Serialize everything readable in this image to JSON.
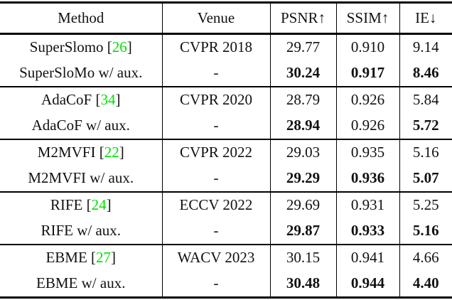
{
  "table": {
    "title": "video frame interpolation benchmark results",
    "colors": {
      "text": "#111111",
      "citation_green": "#00e000",
      "rule": "#000000",
      "background": "#ffffff"
    },
    "headers": [
      "Method",
      "Venue",
      "PSNR↑",
      "SSIM↑",
      "IE↓"
    ],
    "groups": [
      {
        "rows": [
          {
            "method": {
              "name": "SuperSlomo",
              "pre": " [",
              "ref": "26",
              "post": "]"
            },
            "venue": "CVPR 2018",
            "psnr": {
              "v": "29.77",
              "b": false
            },
            "ssim": {
              "v": "0.910",
              "b": false
            },
            "ie": {
              "v": "9.14",
              "b": false
            }
          },
          {
            "method": {
              "name": "SuperSloMo w/ aux."
            },
            "venue": "-",
            "psnr": {
              "v": "30.24",
              "b": true
            },
            "ssim": {
              "v": "0.917",
              "b": true
            },
            "ie": {
              "v": "8.46",
              "b": true
            }
          }
        ]
      },
      {
        "rows": [
          {
            "method": {
              "name": "AdaCoF",
              "pre": " [",
              "ref": "34",
              "post": "]"
            },
            "venue": "CVPR 2020",
            "psnr": {
              "v": "28.79",
              "b": false
            },
            "ssim": {
              "v": "0.926",
              "b": false
            },
            "ie": {
              "v": "5.84",
              "b": false
            }
          },
          {
            "method": {
              "name": "AdaCoF w/ aux."
            },
            "venue": "-",
            "psnr": {
              "v": "28.94",
              "b": true
            },
            "ssim": {
              "v": "0.926",
              "b": false
            },
            "ie": {
              "v": "5.72",
              "b": true
            }
          }
        ]
      },
      {
        "rows": [
          {
            "method": {
              "name": "M2MVFI",
              "pre": " [",
              "ref": "22",
              "post": "]"
            },
            "venue": "CVPR 2022",
            "psnr": {
              "v": "29.03",
              "b": false
            },
            "ssim": {
              "v": "0.935",
              "b": false
            },
            "ie": {
              "v": "5.16",
              "b": false
            }
          },
          {
            "method": {
              "name": "M2MVFI w/ aux."
            },
            "venue": "-",
            "psnr": {
              "v": "29.29",
              "b": true
            },
            "ssim": {
              "v": "0.936",
              "b": true
            },
            "ie": {
              "v": "5.07",
              "b": true
            }
          }
        ]
      },
      {
        "rows": [
          {
            "method": {
              "name": "RIFE",
              "pre": " [",
              "ref": "24",
              "post": "]"
            },
            "venue": "ECCV 2022",
            "psnr": {
              "v": "29.69",
              "b": false
            },
            "ssim": {
              "v": "0.931",
              "b": false
            },
            "ie": {
              "v": "5.25",
              "b": false
            }
          },
          {
            "method": {
              "name": "RIFE w/ aux."
            },
            "venue": "-",
            "psnr": {
              "v": "29.87",
              "b": true
            },
            "ssim": {
              "v": "0.933",
              "b": true
            },
            "ie": {
              "v": "5.16",
              "b": true
            }
          }
        ]
      },
      {
        "rows": [
          {
            "method": {
              "name": "EBME",
              "pre": " [",
              "ref": "27",
              "post": "]"
            },
            "venue": "WACV 2023",
            "psnr": {
              "v": "30.15",
              "b": false
            },
            "ssim": {
              "v": "0.941",
              "b": false
            },
            "ie": {
              "v": "4.66",
              "b": false
            }
          },
          {
            "method": {
              "name": "EBME w/ aux."
            },
            "venue": "-",
            "psnr": {
              "v": "30.48",
              "b": true
            },
            "ssim": {
              "v": "0.944",
              "b": true
            },
            "ie": {
              "v": "4.40",
              "b": true
            }
          }
        ]
      }
    ]
  }
}
